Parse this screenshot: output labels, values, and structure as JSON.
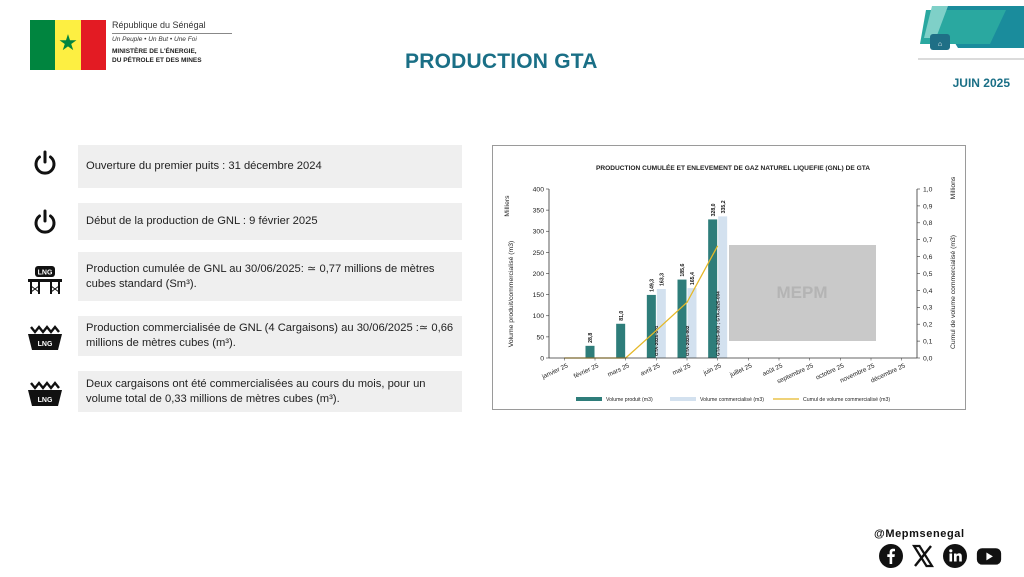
{
  "header": {
    "republic": "République du Sénégal",
    "motto": "Un Peuple • Un But • Une Foi",
    "ministry_line1": "MINISTÈRE DE L'ÉNERGIE,",
    "ministry_line2": "DU PÉTROLE ET DES MINES",
    "title": "PRODUCTION GTA",
    "date": "JUIN 2025"
  },
  "info": [
    {
      "icon": "power-icon",
      "text": "Ouverture du premier puits : 31 décembre 2024"
    },
    {
      "icon": "power-icon",
      "text": "Début de la production de GNL : 9 février 2025"
    },
    {
      "icon": "lng-tank-icon",
      "text": "Production cumulée de GNL au 30/06/2025: ≃ 0,77 millions de mètres cubes standard (Sm³)."
    },
    {
      "icon": "lng-crate-icon",
      "text": "Production commercialisée de GNL (4 Cargaisons) au 30/06/2025 :≃ 0,66 millions de mètres cubes (m³)."
    },
    {
      "icon": "lng-crate-icon",
      "text": "Deux cargaisons ont été commercialisées au cours du mois, pour un volume total de 0,33 millions de mètres cubes (m³)."
    }
  ],
  "footer": {
    "handle": "@Mepmsenegal"
  },
  "colors": {
    "title": "#1a6f86",
    "produced": "#2e7d7a",
    "sold": "#d3e1ef",
    "cumulative": "#e5b828"
  },
  "chart_data": {
    "type": "bar",
    "title": "PRODUCTION CUMULÉE ET ENLEVEMENT DE GAZ NATUREL LIQUEFIE (GNL) DE GTA",
    "categories": [
      "janvier 25",
      "février 25",
      "mars 25",
      "avril 25",
      "mai 25",
      "juin 25",
      "juillet 25",
      "août 25",
      "septembre 25",
      "octobre 25",
      "novembre 25",
      "décembre 25"
    ],
    "series": [
      {
        "name": "Volume produit (m3)",
        "type": "bar",
        "axis": "left",
        "values": [
          0,
          28.8,
          81.0,
          149.3,
          185.6,
          328.0,
          null,
          null,
          null,
          null,
          null,
          null
        ]
      },
      {
        "name": "Volume commercialisé (m3)",
        "type": "bar",
        "axis": "left",
        "values": [
          0,
          0,
          0,
          163.3,
          165.4,
          335.2,
          null,
          null,
          null,
          null,
          null,
          null
        ]
      },
      {
        "name": "Cumul de volume commercialisé (m3)",
        "type": "line",
        "axis": "right",
        "values": [
          0,
          0,
          0,
          0.163,
          0.329,
          0.664,
          null,
          null,
          null,
          null,
          null,
          null
        ]
      }
    ],
    "bar_labels": {
      "produced": [
        "",
        "28,8",
        "81,0",
        "149,3",
        "185,6",
        "328,0",
        "",
        "",
        "",
        "",
        "",
        ""
      ],
      "sold": [
        "",
        "",
        "",
        "163,3",
        "165,4",
        "335,2",
        "",
        "",
        "",
        "",
        "",
        ""
      ]
    },
    "cargo_labels": [
      "",
      "",
      "",
      "GTA-2025-001",
      "GTA-2025-002",
      "GTA-2025-003 ; GTA-2025-004",
      "",
      "",
      "",
      "",
      "",
      ""
    ],
    "ylabel": "Volume produit/commercialisé (m3)",
    "y_unit": "Milliers",
    "ylim": [
      0,
      400
    ],
    "yticks": [
      "0",
      "50",
      "100",
      "150",
      "200",
      "250",
      "300",
      "350",
      "400"
    ],
    "y2label": "Cumul de volume commercialisé (m3)",
    "y2_unit": "Millions",
    "y2lim": [
      0,
      1.0
    ],
    "y2ticks": [
      "0,0",
      "0,1",
      "0,2",
      "0,3",
      "0,4",
      "0,5",
      "0,6",
      "0,7",
      "0,8",
      "0,9",
      "1,0"
    ],
    "watermark": "MEPM",
    "legend_position": "bottom"
  }
}
